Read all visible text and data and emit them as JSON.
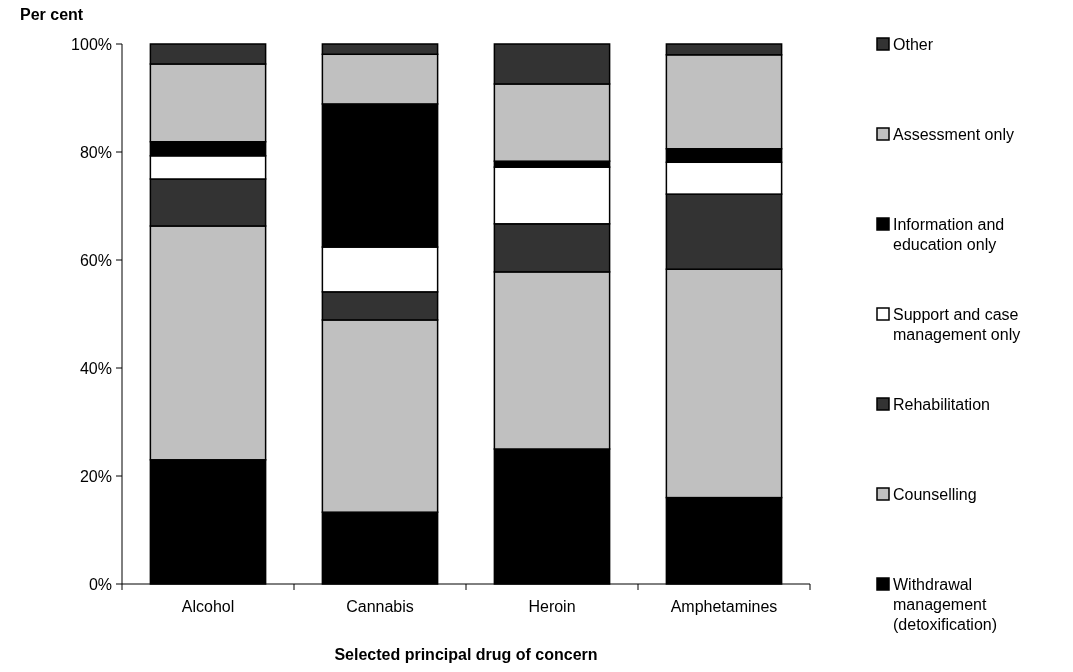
{
  "chart_data": {
    "type": "bar",
    "stacked": true,
    "ylabel": "Per cent",
    "xlabel": "Selected principal drug of concern",
    "categories": [
      "Alcohol",
      "Cannabis",
      "Heroin",
      "Amphetamines"
    ],
    "series": [
      {
        "name": "Withdrawal management (detoxification)",
        "color": "#000000",
        "values": [
          23,
          13.3,
          25,
          16
        ]
      },
      {
        "name": "Counselling",
        "color": "#c0c0c0",
        "values": [
          43.3,
          35.6,
          32.8,
          42.3
        ]
      },
      {
        "name": "Rehabilitation",
        "color": "#333333",
        "values": [
          8.7,
          5.2,
          8.9,
          13.9
        ]
      },
      {
        "name": "Support and case management only",
        "color": "#ffffff",
        "values": [
          4.3,
          8.3,
          10.5,
          5.9
        ]
      },
      {
        "name": "Information and education only",
        "color": "#000000",
        "values": [
          2.6,
          26.5,
          1.1,
          2.5
        ]
      },
      {
        "name": "Assessment only",
        "color": "#c0c0c0",
        "values": [
          14.4,
          9.2,
          14.3,
          17.4
        ]
      },
      {
        "name": "Other",
        "color": "#333333",
        "values": [
          3.7,
          1.9,
          7.4,
          2.0
        ]
      }
    ],
    "ylim": [
      0,
      100
    ],
    "yticks": [
      {
        "value": 0,
        "label": "0%"
      },
      {
        "value": 20,
        "label": "20%"
      },
      {
        "value": 40,
        "label": "40%"
      },
      {
        "value": 60,
        "label": "60%"
      },
      {
        "value": 80,
        "label": "80%"
      },
      {
        "value": 100,
        "label": "100%"
      }
    ],
    "grid": false,
    "legend": "right"
  }
}
